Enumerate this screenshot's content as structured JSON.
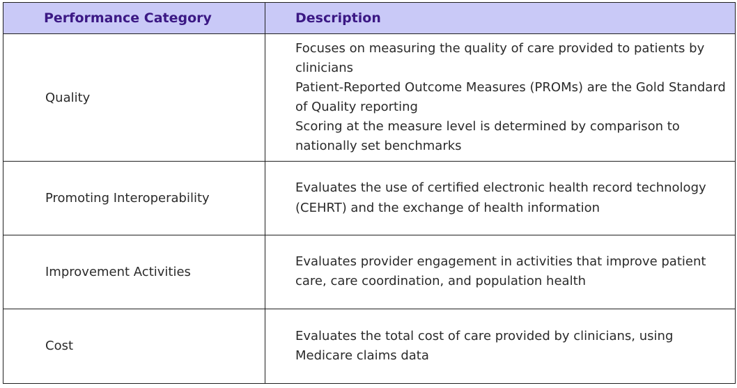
{
  "table": {
    "headers": {
      "category": "Performance Category",
      "description": "Description"
    },
    "rows": [
      {
        "category": "Quality",
        "description_lines": [
          "Focuses on measuring the quality of care provided to patients by clinicians",
          "Patient-Reported Outcome Measures (PROMs) are the Gold Standard of Quality reporting",
          "Scoring at the measure level is determined by comparison to nationally set benchmarks"
        ]
      },
      {
        "category": "Promoting Interoperability",
        "description_lines": [
          "Evaluates the use of certified electronic health record technology (CEHRT) and the exchange of health information"
        ]
      },
      {
        "category": "Improvement Activities",
        "description_lines": [
          "Evaluates provider engagement in activities that improve patient care, care coordination, and population health"
        ]
      },
      {
        "category": "Cost",
        "description_lines": [
          "Evaluates the total cost of care provided by clinicians, using Medicare claims data"
        ]
      }
    ]
  }
}
